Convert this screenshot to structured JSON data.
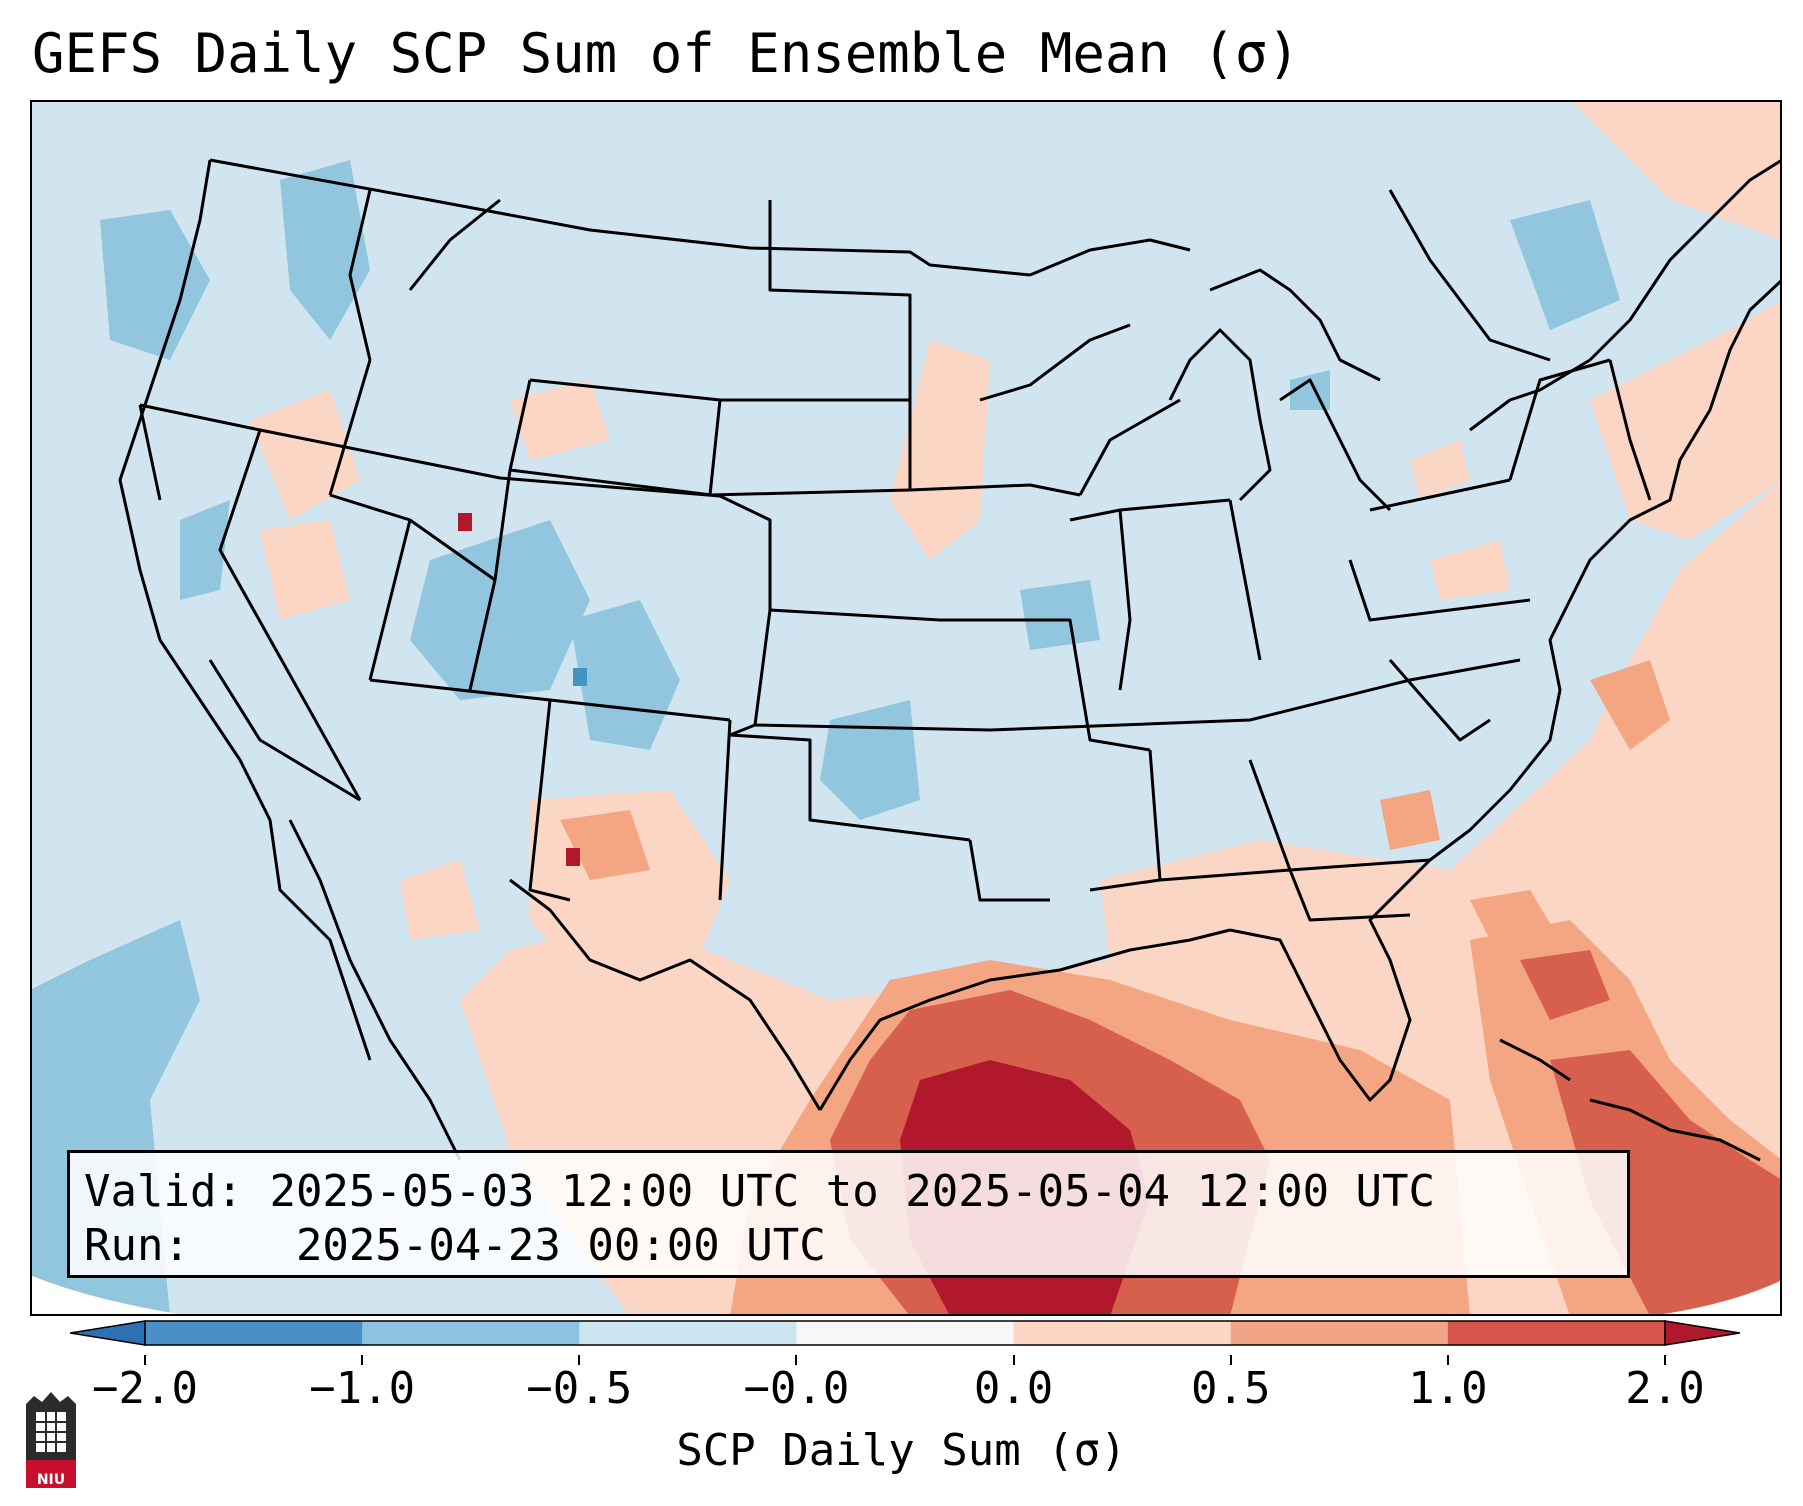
{
  "title": "GEFS Daily SCP Sum of Ensemble Mean (σ)",
  "info": {
    "valid_label": "Valid:",
    "valid_value": "2025-05-03 12:00 UTC to 2025-05-04 12:00 UTC",
    "run_label": "Run:",
    "run_value": "2025-04-23 00:00 UTC"
  },
  "colorbar": {
    "label": "SCP Daily Sum (σ)",
    "ticks": [
      "−2.0",
      "−1.0",
      "−0.5",
      "−0.0",
      "0.0",
      "0.5",
      "1.0",
      "2.0"
    ],
    "colors": [
      "#4a8fc7",
      "#8fc2df",
      "#cde4f1",
      "#f7f7f7",
      "#fbd6c4",
      "#f2a487",
      "#d6544b"
    ],
    "extend_low": "#2f6fb3",
    "extend_high": "#b2182b"
  },
  "map": {
    "projection": "Lambert Conformal CONUS",
    "background_color": "#d1e5f0",
    "features": [
      "state-borders",
      "country-borders",
      "coastlines"
    ]
  },
  "logo": {
    "text": "NIU"
  }
}
